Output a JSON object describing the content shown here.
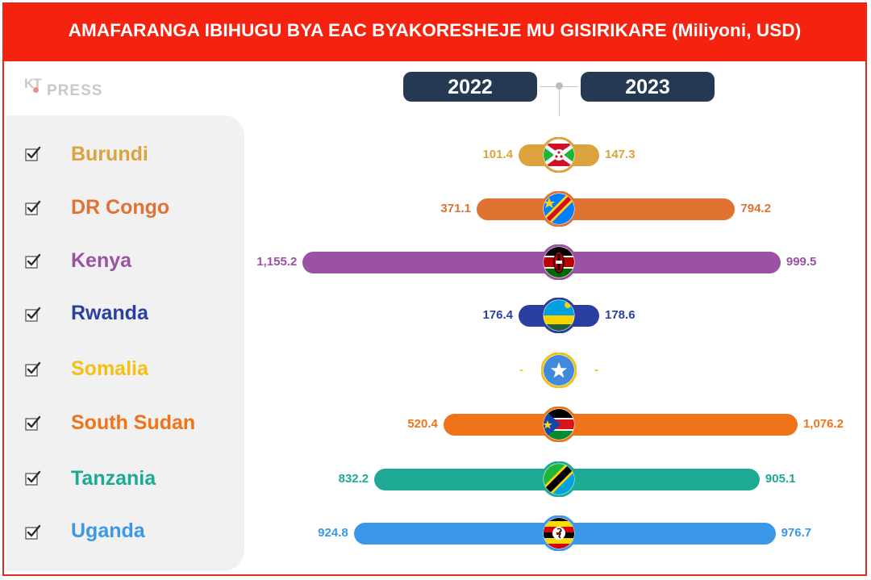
{
  "title": "AMAFARANGA IBIHUGU BYA EAC BYAKORESHEJE MU GISIRIKARE (Miliyoni, USD)",
  "logo": {
    "mark": "KT",
    "text": "PRESS"
  },
  "colors": {
    "title_bg": "#f4220f",
    "year_pill": "#253a52",
    "panel": "#f1f1f1"
  },
  "chart_data": {
    "type": "bar",
    "subtype": "diverging-horizontal",
    "title": "AMAFARANGA IBIHUGU BYA EAC BYAKORESHEJE MU GISIRIKARE (Miliyoni, USD)",
    "categories": [
      "Burundi",
      "DR Congo",
      "Kenya",
      "Rwanda",
      "Somalia",
      "South Sudan",
      "Tanzania",
      "Uganda"
    ],
    "series": [
      {
        "name": "2022",
        "values": [
          101.4,
          371.1,
          1155.2,
          176.4,
          null,
          520.4,
          832.2,
          924.8
        ],
        "labels": [
          "101.4",
          "371.1",
          "1,155.2",
          "176.4",
          "-",
          "520.4",
          "832.2",
          "924.8"
        ]
      },
      {
        "name": "2023",
        "values": [
          147.3,
          794.2,
          999.5,
          178.6,
          null,
          1076.2,
          905.1,
          976.7
        ],
        "labels": [
          "147.3",
          "794.2",
          "999.5",
          "178.6",
          "-",
          "1,076.2",
          "905.1",
          "976.7"
        ]
      }
    ],
    "category_colors": [
      "#dba23d",
      "#e07232",
      "#9c52a2",
      "#2b3fa2",
      "#f4c014",
      "#ef7318",
      "#1da994",
      "#3b98e8"
    ],
    "category_icons": [
      "burundi-flag-icon",
      "dr-congo-flag-icon",
      "kenya-flag-icon",
      "rwanda-flag-icon",
      "somalia-flag-icon",
      "south-sudan-flag-icon",
      "tanzania-flag-icon",
      "uganda-flag-icon"
    ],
    "legend": "center-top",
    "grid": false
  }
}
